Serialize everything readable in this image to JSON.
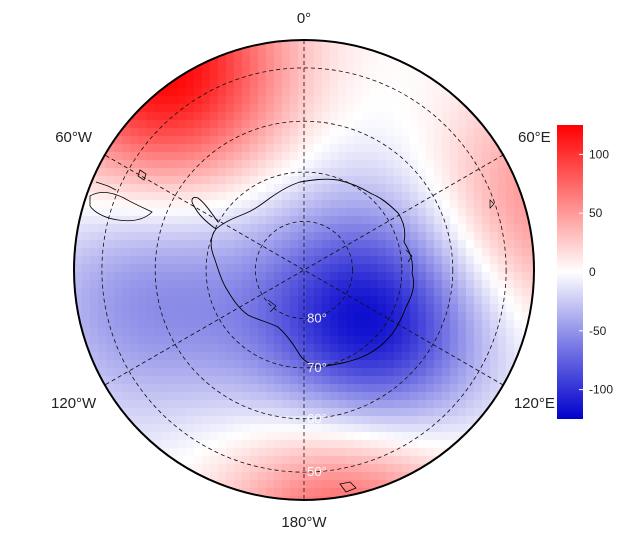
{
  "map": {
    "projection": "south-polar-stereographic",
    "longitude_labels": [
      {
        "lon": 0,
        "text": "0°"
      },
      {
        "lon": 60,
        "text": "60°E"
      },
      {
        "lon": 120,
        "text": "120°E"
      },
      {
        "lon": 180,
        "text": "180°W"
      },
      {
        "lon": -120,
        "text": "120°W"
      },
      {
        "lon": -60,
        "text": "60°W"
      }
    ],
    "latitude_labels": [
      {
        "lat": -80,
        "text": "80°"
      },
      {
        "lat": -70,
        "text": "70°"
      },
      {
        "lat": -60,
        "text": "60°"
      },
      {
        "lat": -50,
        "text": "50°"
      }
    ],
    "graticule_style": "dashed",
    "field_anomalies": [
      {
        "name": "positive-center",
        "lon": -35,
        "lat": -43,
        "value": 125
      },
      {
        "name": "positive-ring-east",
        "lon": 75,
        "lat": -45,
        "value": 60
      },
      {
        "name": "positive-ring-south",
        "lon": 170,
        "lat": -42,
        "value": 85
      },
      {
        "name": "negative-center",
        "lon": 130,
        "lat": -72,
        "value": -125
      },
      {
        "name": "negative-band-west",
        "lon": -100,
        "lat": -58,
        "value": -55
      },
      {
        "name": "weak-negative-east",
        "lon": 45,
        "lat": -62,
        "value": -10
      }
    ]
  },
  "colorbar": {
    "max": 125,
    "min": -125,
    "ticks": [
      {
        "value": 100,
        "text": "100"
      },
      {
        "value": 50,
        "text": "50"
      },
      {
        "value": 0,
        "text": "0"
      },
      {
        "value": -50,
        "text": "-50"
      },
      {
        "value": -100,
        "text": "-100"
      }
    ],
    "color_high": "#ff0000",
    "color_mid": "#ffffff",
    "color_low": "#0000cc"
  }
}
